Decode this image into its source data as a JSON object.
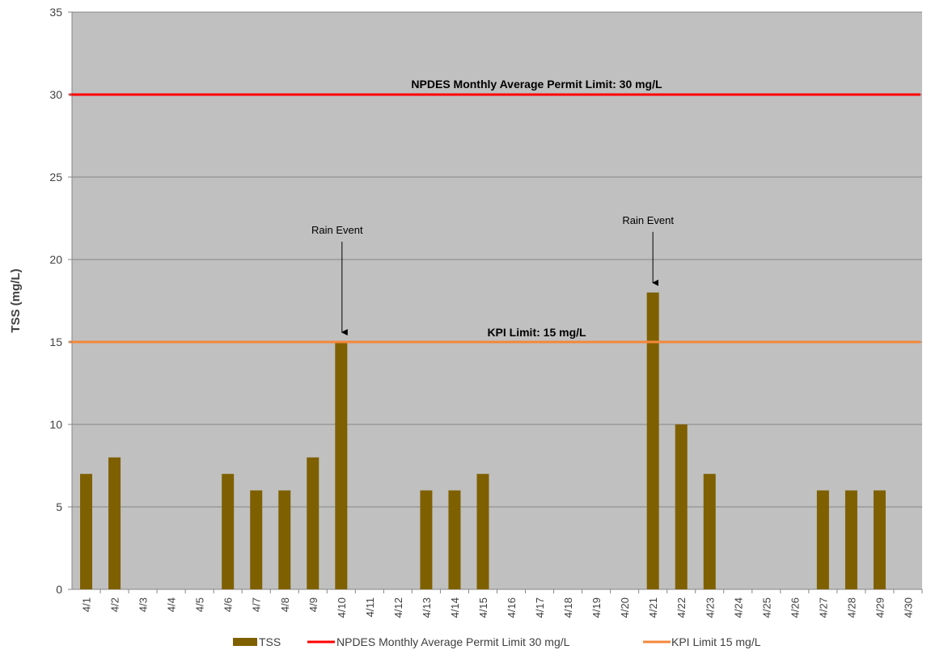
{
  "chart_data": {
    "type": "bar",
    "title": "",
    "xlabel": "",
    "ylabel": "TSS (mg/L)",
    "ylim": [
      0,
      35
    ],
    "yticks": [
      0,
      5,
      10,
      15,
      20,
      25,
      30,
      35
    ],
    "grid": true,
    "legend_position": "bottom",
    "categories": [
      "4/1",
      "4/2",
      "4/3",
      "4/4",
      "4/5",
      "4/6",
      "4/7",
      "4/8",
      "4/9",
      "4/10",
      "4/11",
      "4/12",
      "4/13",
      "4/14",
      "4/15",
      "4/16",
      "4/17",
      "4/18",
      "4/19",
      "4/20",
      "4/21",
      "4/22",
      "4/23",
      "4/24",
      "4/25",
      "4/26",
      "4/27",
      "4/28",
      "4/29",
      "4/30"
    ],
    "series": [
      {
        "name": "TSS",
        "type": "bar",
        "color": "#7f6000",
        "values": [
          7,
          8,
          null,
          null,
          null,
          7,
          6,
          6,
          8,
          15,
          null,
          null,
          6,
          6,
          7,
          null,
          null,
          null,
          null,
          null,
          18,
          10,
          7,
          null,
          null,
          null,
          6,
          6,
          6,
          null
        ]
      },
      {
        "name": "NPDES Monthly Average Permit Limit 30 mg/L",
        "type": "line",
        "color": "#ff0000",
        "value": 30
      },
      {
        "name": "KPI Limit 15 mg/L",
        "type": "line",
        "color": "#f4873a",
        "value": 15
      }
    ],
    "line_labels": {
      "npdes": "NPDES Monthly Average Permit Limit: 30 mg/L",
      "kpi": "KPI Limit: 15 mg/L"
    },
    "annotations": [
      {
        "text": "Rain Event",
        "category": "4/10",
        "value": 15
      },
      {
        "text": "Rain Event",
        "category": "4/21",
        "value": 18
      }
    ],
    "plot_background": "#c0c0c0",
    "grid_color": "#868686"
  }
}
